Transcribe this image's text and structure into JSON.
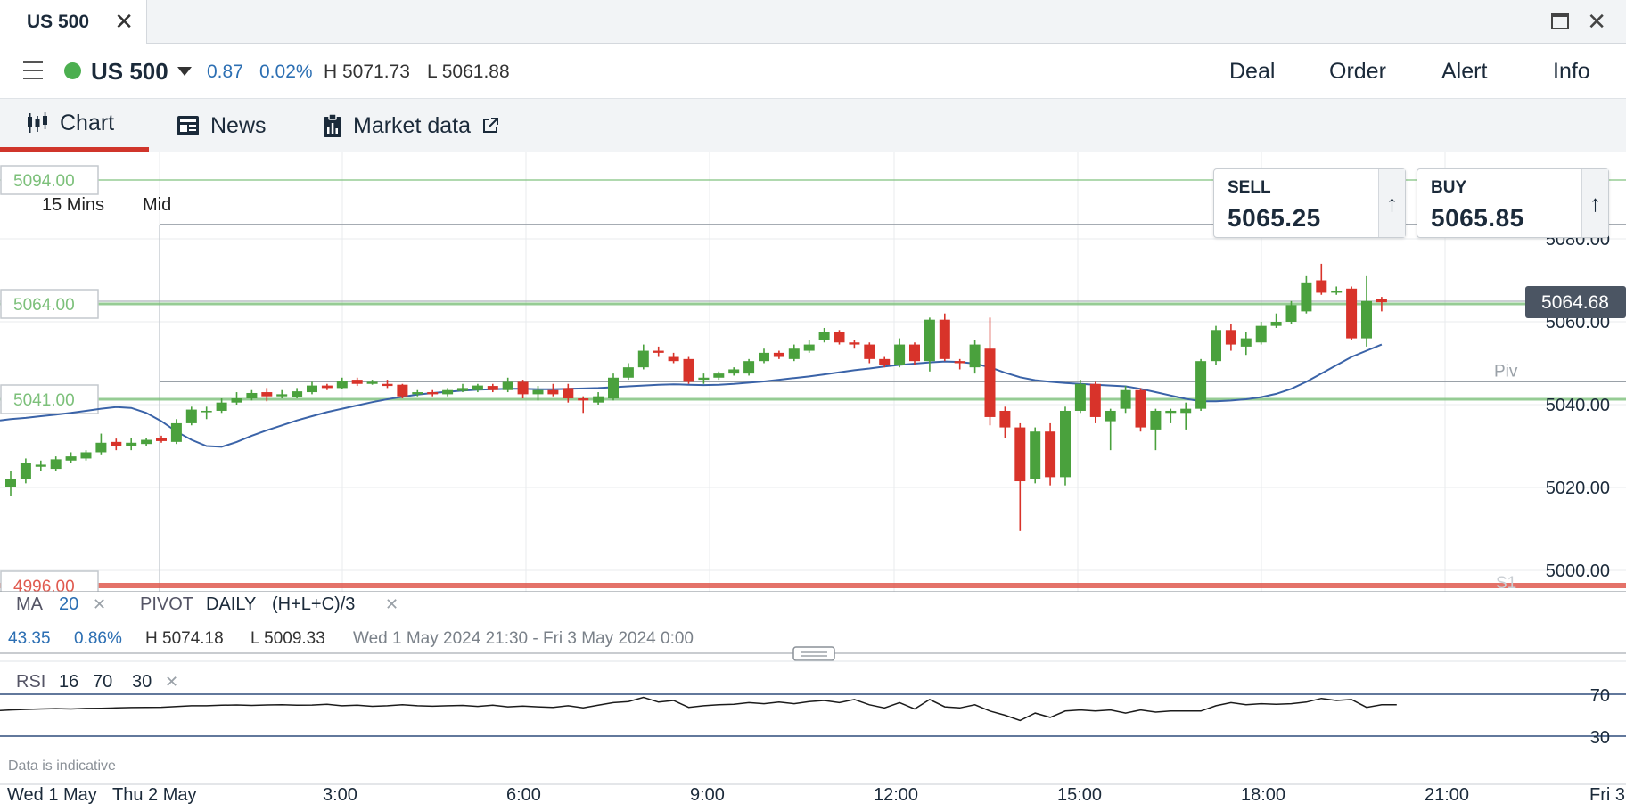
{
  "window": {
    "tab_title": "US 500",
    "close_glyph": "✕",
    "window_close_glyph": "✕"
  },
  "instrument": {
    "name": "US 500",
    "change": "0.87",
    "change_pct": "0.02%",
    "high": "H 5071.73",
    "low": "L 5061.88",
    "status_color": "#4caf50"
  },
  "header_actions": [
    "Deal",
    "Order",
    "Alert",
    "Info"
  ],
  "tabs": [
    {
      "label": "Chart",
      "icon": "candlestick-icon",
      "active": true
    },
    {
      "label": "News",
      "icon": "newspaper-icon",
      "active": false
    },
    {
      "label": "Market data",
      "icon": "clipboard-icon",
      "active": false,
      "external": true
    }
  ],
  "quote": {
    "sell_label": "SELL",
    "sell_price": "5065.25",
    "buy_label": "BUY",
    "buy_price": "5065.85",
    "arrow_glyph": "↑"
  },
  "chart_settings": {
    "timeframe": "15 Mins",
    "price_type": "Mid"
  },
  "chart_data": {
    "type": "candlestick",
    "y_ticks": [
      "5080.00",
      "5060.00",
      "5040.00",
      "5020.00",
      "5000.00"
    ],
    "ylim": [
      4996,
      5094
    ],
    "x_ticks": [
      "Wed 1 May",
      "Thu 2 May",
      "3:00",
      "6:00",
      "9:00",
      "12:00",
      "15:00",
      "18:00",
      "21:00",
      "Fri 3"
    ],
    "current_price": "5064.68",
    "level_lines": [
      {
        "label": "5094.00",
        "value": 5094.0,
        "color": "#7cc07a"
      },
      {
        "label": "5064.00",
        "value": 5064.0,
        "color": "#7cc07a"
      },
      {
        "label": "5041.00",
        "value": 5041.0,
        "color": "#7cc07a"
      },
      {
        "label": "4996.00",
        "value": 4996.0,
        "color": "#e05a4f"
      }
    ],
    "pivot_labels": {
      "piv": "Piv",
      "s1": "S1"
    },
    "pivot_value": 5045.5,
    "upper_gray_value": 5083.5,
    "colors": {
      "up": "#4aa13d",
      "down": "#d8332a",
      "ma": "#3a63a8"
    },
    "candles": [
      {
        "o": 5020.0,
        "c": 5022.0,
        "h": 5024.0,
        "l": 5018.0
      },
      {
        "o": 5022.0,
        "c": 5026.0,
        "h": 5027.0,
        "l": 5021.0
      },
      {
        "o": 5025.0,
        "c": 5025.5,
        "h": 5026.5,
        "l": 5024.0
      },
      {
        "o": 5024.5,
        "c": 5026.8,
        "h": 5027.5,
        "l": 5024.0
      },
      {
        "o": 5026.5,
        "c": 5027.5,
        "h": 5028.5,
        "l": 5026.0
      },
      {
        "o": 5027.0,
        "c": 5028.5,
        "h": 5029.0,
        "l": 5026.5
      },
      {
        "o": 5028.5,
        "c": 5030.8,
        "h": 5033.0,
        "l": 5028.0
      },
      {
        "o": 5031.0,
        "c": 5030.0,
        "h": 5031.8,
        "l": 5029.0
      },
      {
        "o": 5030.0,
        "c": 5030.8,
        "h": 5032.0,
        "l": 5029.0
      },
      {
        "o": 5030.5,
        "c": 5031.5,
        "h": 5032.0,
        "l": 5030.0
      },
      {
        "o": 5032.0,
        "c": 5031.2,
        "h": 5032.5,
        "l": 5030.8
      },
      {
        "o": 5031.0,
        "c": 5035.5,
        "h": 5036.5,
        "l": 5030.5
      },
      {
        "o": 5035.5,
        "c": 5038.8,
        "h": 5039.5,
        "l": 5035.0
      },
      {
        "o": 5038.5,
        "c": 5038.5,
        "h": 5039.5,
        "l": 5036.5
      },
      {
        "o": 5038.5,
        "c": 5040.5,
        "h": 5041.5,
        "l": 5038.0
      },
      {
        "o": 5040.5,
        "c": 5041.5,
        "h": 5043.0,
        "l": 5040.0
      },
      {
        "o": 5041.5,
        "c": 5042.8,
        "h": 5043.5,
        "l": 5041.0
      },
      {
        "o": 5043.0,
        "c": 5042.0,
        "h": 5044.0,
        "l": 5040.8
      },
      {
        "o": 5042.0,
        "c": 5042.5,
        "h": 5043.5,
        "l": 5041.5
      },
      {
        "o": 5041.8,
        "c": 5043.2,
        "h": 5044.0,
        "l": 5041.5
      },
      {
        "o": 5043.0,
        "c": 5044.6,
        "h": 5045.5,
        "l": 5042.5
      },
      {
        "o": 5044.6,
        "c": 5044.0,
        "h": 5045.0,
        "l": 5043.5
      },
      {
        "o": 5044.0,
        "c": 5045.8,
        "h": 5046.5,
        "l": 5043.8
      },
      {
        "o": 5046.0,
        "c": 5045.0,
        "h": 5046.5,
        "l": 5044.5
      },
      {
        "o": 5045.0,
        "c": 5045.5,
        "h": 5046.0,
        "l": 5044.8
      },
      {
        "o": 5045.0,
        "c": 5044.5,
        "h": 5046.0,
        "l": 5044.0
      },
      {
        "o": 5044.8,
        "c": 5042.0,
        "h": 5045.0,
        "l": 5041.5
      },
      {
        "o": 5042.5,
        "c": 5043.0,
        "h": 5043.5,
        "l": 5042.0
      },
      {
        "o": 5043.0,
        "c": 5042.5,
        "h": 5043.5,
        "l": 5042.0
      },
      {
        "o": 5042.5,
        "c": 5043.5,
        "h": 5044.0,
        "l": 5042.0
      },
      {
        "o": 5043.3,
        "c": 5044.0,
        "h": 5045.0,
        "l": 5043.0
      },
      {
        "o": 5043.5,
        "c": 5044.6,
        "h": 5045.0,
        "l": 5043.0
      },
      {
        "o": 5044.5,
        "c": 5043.5,
        "h": 5045.0,
        "l": 5043.0
      },
      {
        "o": 5043.5,
        "c": 5045.5,
        "h": 5046.5,
        "l": 5043.0
      },
      {
        "o": 5045.5,
        "c": 5042.5,
        "h": 5046.0,
        "l": 5041.5
      },
      {
        "o": 5042.5,
        "c": 5043.5,
        "h": 5044.5,
        "l": 5041.0
      },
      {
        "o": 5043.5,
        "c": 5042.5,
        "h": 5045.0,
        "l": 5042.0
      },
      {
        "o": 5044.0,
        "c": 5041.5,
        "h": 5045.0,
        "l": 5040.5
      },
      {
        "o": 5041.5,
        "c": 5041.0,
        "h": 5042.0,
        "l": 5038.0
      },
      {
        "o": 5040.5,
        "c": 5042.0,
        "h": 5043.0,
        "l": 5040.0
      },
      {
        "o": 5041.5,
        "c": 5046.5,
        "h": 5047.5,
        "l": 5041.0
      },
      {
        "o": 5046.5,
        "c": 5049.0,
        "h": 5050.0,
        "l": 5046.0
      },
      {
        "o": 5049.0,
        "c": 5053.0,
        "h": 5054.5,
        "l": 5048.5
      },
      {
        "o": 5053.0,
        "c": 5052.5,
        "h": 5054.0,
        "l": 5051.5
      },
      {
        "o": 5051.5,
        "c": 5050.5,
        "h": 5052.5,
        "l": 5050.0
      },
      {
        "o": 5051.0,
        "c": 5045.5,
        "h": 5051.5,
        "l": 5045.0
      },
      {
        "o": 5046.0,
        "c": 5046.5,
        "h": 5047.5,
        "l": 5045.0
      },
      {
        "o": 5046.5,
        "c": 5047.5,
        "h": 5048.0,
        "l": 5046.0
      },
      {
        "o": 5047.5,
        "c": 5048.5,
        "h": 5049.0,
        "l": 5047.0
      },
      {
        "o": 5047.5,
        "c": 5050.5,
        "h": 5051.0,
        "l": 5047.0
      },
      {
        "o": 5050.5,
        "c": 5052.5,
        "h": 5053.5,
        "l": 5050.0
      },
      {
        "o": 5052.5,
        "c": 5051.5,
        "h": 5053.0,
        "l": 5051.0
      },
      {
        "o": 5051.0,
        "c": 5053.5,
        "h": 5054.5,
        "l": 5050.5
      },
      {
        "o": 5053.0,
        "c": 5054.5,
        "h": 5055.5,
        "l": 5052.5
      },
      {
        "o": 5055.5,
        "c": 5057.5,
        "h": 5058.5,
        "l": 5055.0
      },
      {
        "o": 5057.5,
        "c": 5055.0,
        "h": 5058.0,
        "l": 5054.5
      },
      {
        "o": 5055.0,
        "c": 5054.5,
        "h": 5055.5,
        "l": 5053.5
      },
      {
        "o": 5054.5,
        "c": 5051.0,
        "h": 5055.0,
        "l": 5050.0
      },
      {
        "o": 5051.0,
        "c": 5049.5,
        "h": 5051.5,
        "l": 5049.0
      },
      {
        "o": 5049.5,
        "c": 5054.5,
        "h": 5056.0,
        "l": 5049.0
      },
      {
        "o": 5054.5,
        "c": 5050.5,
        "h": 5055.0,
        "l": 5049.5
      },
      {
        "o": 5050.5,
        "c": 5060.5,
        "h": 5061.0,
        "l": 5048.0
      },
      {
        "o": 5060.5,
        "c": 5051.0,
        "h": 5062.0,
        "l": 5050.5
      },
      {
        "o": 5050.5,
        "c": 5050.0,
        "h": 5051.0,
        "l": 5048.5
      },
      {
        "o": 5049.0,
        "c": 5054.5,
        "h": 5055.5,
        "l": 5047.5
      },
      {
        "o": 5053.5,
        "c": 5037.0,
        "h": 5061.0,
        "l": 5035.0
      },
      {
        "o": 5038.5,
        "c": 5034.5,
        "h": 5039.5,
        "l": 5032.0
      },
      {
        "o": 5034.5,
        "c": 5021.5,
        "h": 5035.5,
        "l": 5009.5
      },
      {
        "o": 5022.0,
        "c": 5033.5,
        "h": 5034.5,
        "l": 5021.0
      },
      {
        "o": 5033.5,
        "c": 5022.5,
        "h": 5035.5,
        "l": 5020.5
      },
      {
        "o": 5022.5,
        "c": 5038.5,
        "h": 5039.5,
        "l": 5020.5
      },
      {
        "o": 5038.5,
        "c": 5045.0,
        "h": 5046.0,
        "l": 5038.0
      },
      {
        "o": 5045.0,
        "c": 5037.0,
        "h": 5045.5,
        "l": 5035.5
      },
      {
        "o": 5036.0,
        "c": 5038.5,
        "h": 5039.0,
        "l": 5029.0
      },
      {
        "o": 5039.0,
        "c": 5043.5,
        "h": 5044.5,
        "l": 5038.0
      },
      {
        "o": 5043.5,
        "c": 5034.5,
        "h": 5044.0,
        "l": 5033.5
      },
      {
        "o": 5034.0,
        "c": 5038.5,
        "h": 5039.0,
        "l": 5029.0
      },
      {
        "o": 5038.0,
        "c": 5038.5,
        "h": 5039.0,
        "l": 5035.5
      },
      {
        "o": 5038.0,
        "c": 5039.0,
        "h": 5040.5,
        "l": 5034.0
      },
      {
        "o": 5039.0,
        "c": 5050.5,
        "h": 5051.0,
        "l": 5038.5
      },
      {
        "o": 5050.5,
        "c": 5058.0,
        "h": 5059.0,
        "l": 5049.5
      },
      {
        "o": 5058.0,
        "c": 5054.5,
        "h": 5059.5,
        "l": 5053.0
      },
      {
        "o": 5054.0,
        "c": 5056.0,
        "h": 5057.5,
        "l": 5052.0
      },
      {
        "o": 5055.0,
        "c": 5059.0,
        "h": 5060.0,
        "l": 5054.5
      },
      {
        "o": 5059.0,
        "c": 5060.0,
        "h": 5062.0,
        "l": 5058.5
      },
      {
        "o": 5060.0,
        "c": 5064.0,
        "h": 5065.0,
        "l": 5059.5
      },
      {
        "o": 5062.5,
        "c": 5069.5,
        "h": 5071.0,
        "l": 5062.0
      },
      {
        "o": 5070.0,
        "c": 5067.0,
        "h": 5074.0,
        "l": 5066.5
      },
      {
        "o": 5067.0,
        "c": 5067.5,
        "h": 5068.5,
        "l": 5066.5
      },
      {
        "o": 5068.0,
        "c": 5056.0,
        "h": 5068.5,
        "l": 5055.5
      },
      {
        "o": 5056.0,
        "c": 5065.0,
        "h": 5071.0,
        "l": 5054.0
      },
      {
        "o": 5065.5,
        "c": 5064.7,
        "h": 5066.0,
        "l": 5062.5
      }
    ],
    "ma_line": [
      5036.5,
      5036.8,
      5037.2,
      5037.6,
      5038.0,
      5038.5,
      5039.0,
      5039.4,
      5039.2,
      5038.0,
      5036.0,
      5033.5,
      5031.5,
      5030.0,
      5029.8,
      5031.0,
      5032.5,
      5033.8,
      5035.0,
      5036.2,
      5037.2,
      5038.2,
      5039.0,
      5039.8,
      5040.6,
      5041.3,
      5041.9,
      5042.4,
      5042.8,
      5043.1,
      5043.4,
      5043.6,
      5043.7,
      5043.8,
      5043.8,
      5043.7,
      5043.7,
      5043.8,
      5043.9,
      5044.0,
      5044.2,
      5044.4,
      5044.6,
      5044.8,
      5044.9,
      5044.8,
      5044.7,
      5044.8,
      5045.0,
      5045.3,
      5045.6,
      5046.0,
      5046.4,
      5046.8,
      5047.3,
      5047.8,
      5048.3,
      5048.7,
      5049.2,
      5049.6,
      5049.9,
      5050.2,
      5050.4,
      5050.3,
      5049.9,
      5049.0,
      5047.7,
      5046.6,
      5045.9,
      5045.5,
      5045.2,
      5045.0,
      5044.8,
      5044.6,
      5044.4,
      5043.8,
      5043.0,
      5042.2,
      5041.4,
      5040.8,
      5040.8,
      5041.0,
      5041.3,
      5041.8,
      5042.6,
      5043.8,
      5045.5,
      5047.5,
      5049.5,
      5051.5,
      5053.0,
      5054.5
    ],
    "rsi": {
      "period": "16",
      "upper": "70",
      "lower": "30",
      "values": [
        55,
        55.5,
        56,
        56.3,
        56,
        56.5,
        56.6,
        57,
        57.3,
        57.4,
        57.6,
        58.3,
        59,
        59,
        59.5,
        59.8,
        59.4,
        59.8,
        60,
        59.5,
        59.7,
        60.5,
        59,
        59.6,
        58.5,
        59,
        60,
        59,
        58.6,
        59,
        59.4,
        58.4,
        59.5,
        58,
        58.8,
        58,
        57.5,
        59,
        57,
        59.5,
        62,
        63,
        67,
        62.5,
        64,
        57.5,
        59,
        60,
        60.5,
        62,
        61,
        62.5,
        61,
        63,
        64,
        62,
        65,
        60,
        57,
        62,
        56,
        65,
        58,
        57,
        60,
        54,
        50,
        45,
        52,
        48,
        54,
        55,
        54,
        55,
        52,
        55,
        53,
        54,
        54,
        54,
        59,
        62,
        60,
        61,
        60.5,
        61,
        62.5,
        66,
        64,
        65,
        57.5,
        60,
        60
      ]
    }
  },
  "indicators": {
    "ma_label": "MA",
    "ma_period": "20",
    "pivot_label": "PIVOT",
    "pivot_period": "DAILY",
    "pivot_formula": "(H+L+C)/3",
    "remove_glyph": "✕"
  },
  "summary": {
    "change": "43.35",
    "change_pct": "0.86%",
    "high": "H 5074.18",
    "low": "L 5009.33",
    "range": "Wed 1 May 2024 21:30 - Fri 3 May 2024 0:00"
  },
  "rsi_label": "RSI",
  "footer": {
    "disclaimer": "Data is indicative"
  }
}
